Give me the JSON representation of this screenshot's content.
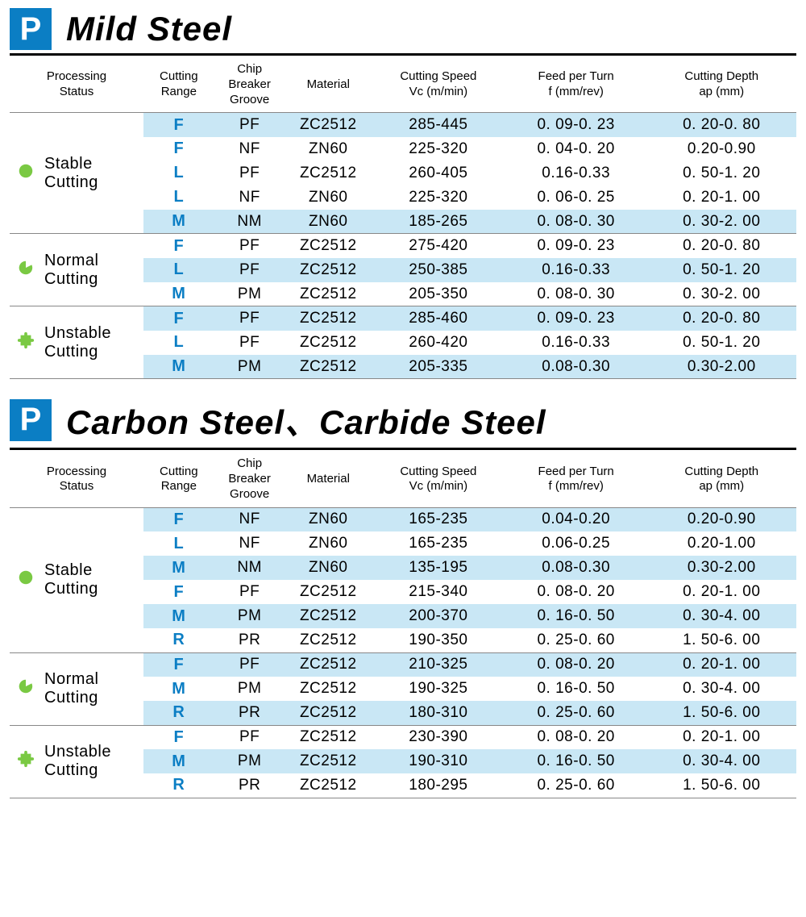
{
  "colors": {
    "badge_bg": "#0b7ec4",
    "highlight_row": "#c9e7f5",
    "range_text": "#0b7ec4",
    "icon_green": "#7ac943",
    "border": "#888888",
    "header_border": "#000000"
  },
  "typography": {
    "title_fontsize": 42,
    "header_fontsize": 15,
    "cell_fontsize": 19,
    "status_fontsize": 20
  },
  "columns": [
    {
      "key": "status",
      "label_line1": "Processing",
      "label_line2": "Status"
    },
    {
      "key": "range",
      "label_line1": "Cutting",
      "label_line2": "Range"
    },
    {
      "key": "chip",
      "label_line1": "Chip",
      "label_line2": "Breaker",
      "label_line3": "Groove"
    },
    {
      "key": "mat",
      "label_line1": "Material",
      "label_line2": ""
    },
    {
      "key": "speed",
      "label_line1": "Cutting Speed",
      "label_line2": "Vc (m/min)"
    },
    {
      "key": "feed",
      "label_line1": "Feed per Turn",
      "label_line2": "f (mm/rev)"
    },
    {
      "key": "depth",
      "label_line1": "Cutting Depth",
      "label_line2": "ap (mm)"
    }
  ],
  "sections": [
    {
      "badge": "P",
      "title": "Mild  Steel",
      "groups": [
        {
          "icon": "circle",
          "status_line1": "Stable",
          "status_line2": "Cutting",
          "rows": [
            {
              "hl": true,
              "range": "F",
              "chip": "PF",
              "mat": "ZC2512",
              "speed": "285-445",
              "feed": "0. 09-0. 23",
              "depth": "0. 20-0. 80"
            },
            {
              "hl": false,
              "range": "F",
              "chip": "NF",
              "mat": "ZN60",
              "speed": "225-320",
              "feed": "0. 04-0. 20",
              "depth": "0.20-0.90"
            },
            {
              "hl": false,
              "range": "L",
              "chip": "PF",
              "mat": "ZC2512",
              "speed": "260-405",
              "feed": "0.16-0.33",
              "depth": "0. 50-1. 20"
            },
            {
              "hl": false,
              "range": "L",
              "chip": "NF",
              "mat": "ZN60",
              "speed": "225-320",
              "feed": "0. 06-0. 25",
              "depth": "0. 20-1. 00"
            },
            {
              "hl": true,
              "range": "M",
              "chip": "NM",
              "mat": "ZN60",
              "speed": "185-265",
              "feed": "0. 08-0. 30",
              "depth": "0. 30-2. 00"
            }
          ]
        },
        {
          "icon": "pacman",
          "status_line1": "Normal",
          "status_line2": "Cutting",
          "rows": [
            {
              "hl": false,
              "range": "F",
              "chip": "PF",
              "mat": "ZC2512",
              "speed": "275-420",
              "feed": "0. 09-0. 23",
              "depth": "0. 20-0. 80"
            },
            {
              "hl": true,
              "range": "L",
              "chip": "PF",
              "mat": "ZC2512",
              "speed": "250-385",
              "feed": "0.16-0.33",
              "depth": "0. 50-1. 20"
            },
            {
              "hl": false,
              "range": "M",
              "chip": "PM",
              "mat": "ZC2512",
              "speed": "205-350",
              "feed": "0. 08-0. 30",
              "depth": "0. 30-2. 00"
            }
          ]
        },
        {
          "icon": "puzzle",
          "status_line1": "Unstable",
          "status_line2": "Cutting",
          "rows": [
            {
              "hl": true,
              "range": "F",
              "chip": "PF",
              "mat": "ZC2512",
              "speed": "285-460",
              "feed": "0. 09-0. 23",
              "depth": "0. 20-0. 80"
            },
            {
              "hl": false,
              "range": "L",
              "chip": "PF",
              "mat": "ZC2512",
              "speed": "260-420",
              "feed": "0.16-0.33",
              "depth": "0. 50-1. 20"
            },
            {
              "hl": true,
              "range": "M",
              "chip": "PM",
              "mat": "ZC2512",
              "speed": "205-335",
              "feed": "0.08-0.30",
              "depth": "0.30-2.00"
            }
          ]
        }
      ]
    },
    {
      "badge": "P",
      "title": "Carbon  Steel、Carbide  Steel",
      "groups": [
        {
          "icon": "circle",
          "status_line1": "Stable",
          "status_line2": "Cutting",
          "rows": [
            {
              "hl": true,
              "range": "F",
              "chip": "NF",
              "mat": "ZN60",
              "speed": "165-235",
              "feed": "0.04-0.20",
              "depth": "0.20-0.90"
            },
            {
              "hl": false,
              "range": "L",
              "chip": "NF",
              "mat": "ZN60",
              "speed": "165-235",
              "feed": "0.06-0.25",
              "depth": "0.20-1.00"
            },
            {
              "hl": true,
              "range": "M",
              "chip": "NM",
              "mat": "ZN60",
              "speed": "135-195",
              "feed": "0.08-0.30",
              "depth": "0.30-2.00"
            },
            {
              "hl": false,
              "range": "F",
              "chip": "PF",
              "mat": "ZC2512",
              "speed": "215-340",
              "feed": "0. 08-0. 20",
              "depth": "0. 20-1. 00"
            },
            {
              "hl": true,
              "range": "M",
              "chip": "PM",
              "mat": "ZC2512",
              "speed": "200-370",
              "feed": "0. 16-0. 50",
              "depth": "0. 30-4. 00"
            },
            {
              "hl": false,
              "range": "R",
              "chip": "PR",
              "mat": "ZC2512",
              "speed": "190-350",
              "feed": "0. 25-0. 60",
              "depth": "1. 50-6. 00"
            }
          ]
        },
        {
          "icon": "pacman",
          "status_line1": "Normal",
          "status_line2": "Cutting",
          "rows": [
            {
              "hl": true,
              "range": "F",
              "chip": "PF",
              "mat": "ZC2512",
              "speed": "210-325",
              "feed": "0. 08-0. 20",
              "depth": "0. 20-1. 00"
            },
            {
              "hl": false,
              "range": "M",
              "chip": "PM",
              "mat": "ZC2512",
              "speed": "190-325",
              "feed": "0. 16-0. 50",
              "depth": "0. 30-4. 00"
            },
            {
              "hl": true,
              "range": "R",
              "chip": "PR",
              "mat": "ZC2512",
              "speed": "180-310",
              "feed": "0. 25-0. 60",
              "depth": "1. 50-6. 00"
            }
          ]
        },
        {
          "icon": "puzzle",
          "status_line1": "Unstable",
          "status_line2": "Cutting",
          "rows": [
            {
              "hl": false,
              "range": "F",
              "chip": "PF",
              "mat": "ZC2512",
              "speed": "230-390",
              "feed": "0. 08-0. 20",
              "depth": "0. 20-1. 00"
            },
            {
              "hl": true,
              "range": "M",
              "chip": "PM",
              "mat": "ZC2512",
              "speed": "190-310",
              "feed": "0. 16-0. 50",
              "depth": "0. 30-4. 00"
            },
            {
              "hl": false,
              "range": "R",
              "chip": "PR",
              "mat": "ZC2512",
              "speed": "180-295",
              "feed": "0. 25-0. 60",
              "depth": "1. 50-6. 00"
            }
          ]
        }
      ]
    }
  ]
}
